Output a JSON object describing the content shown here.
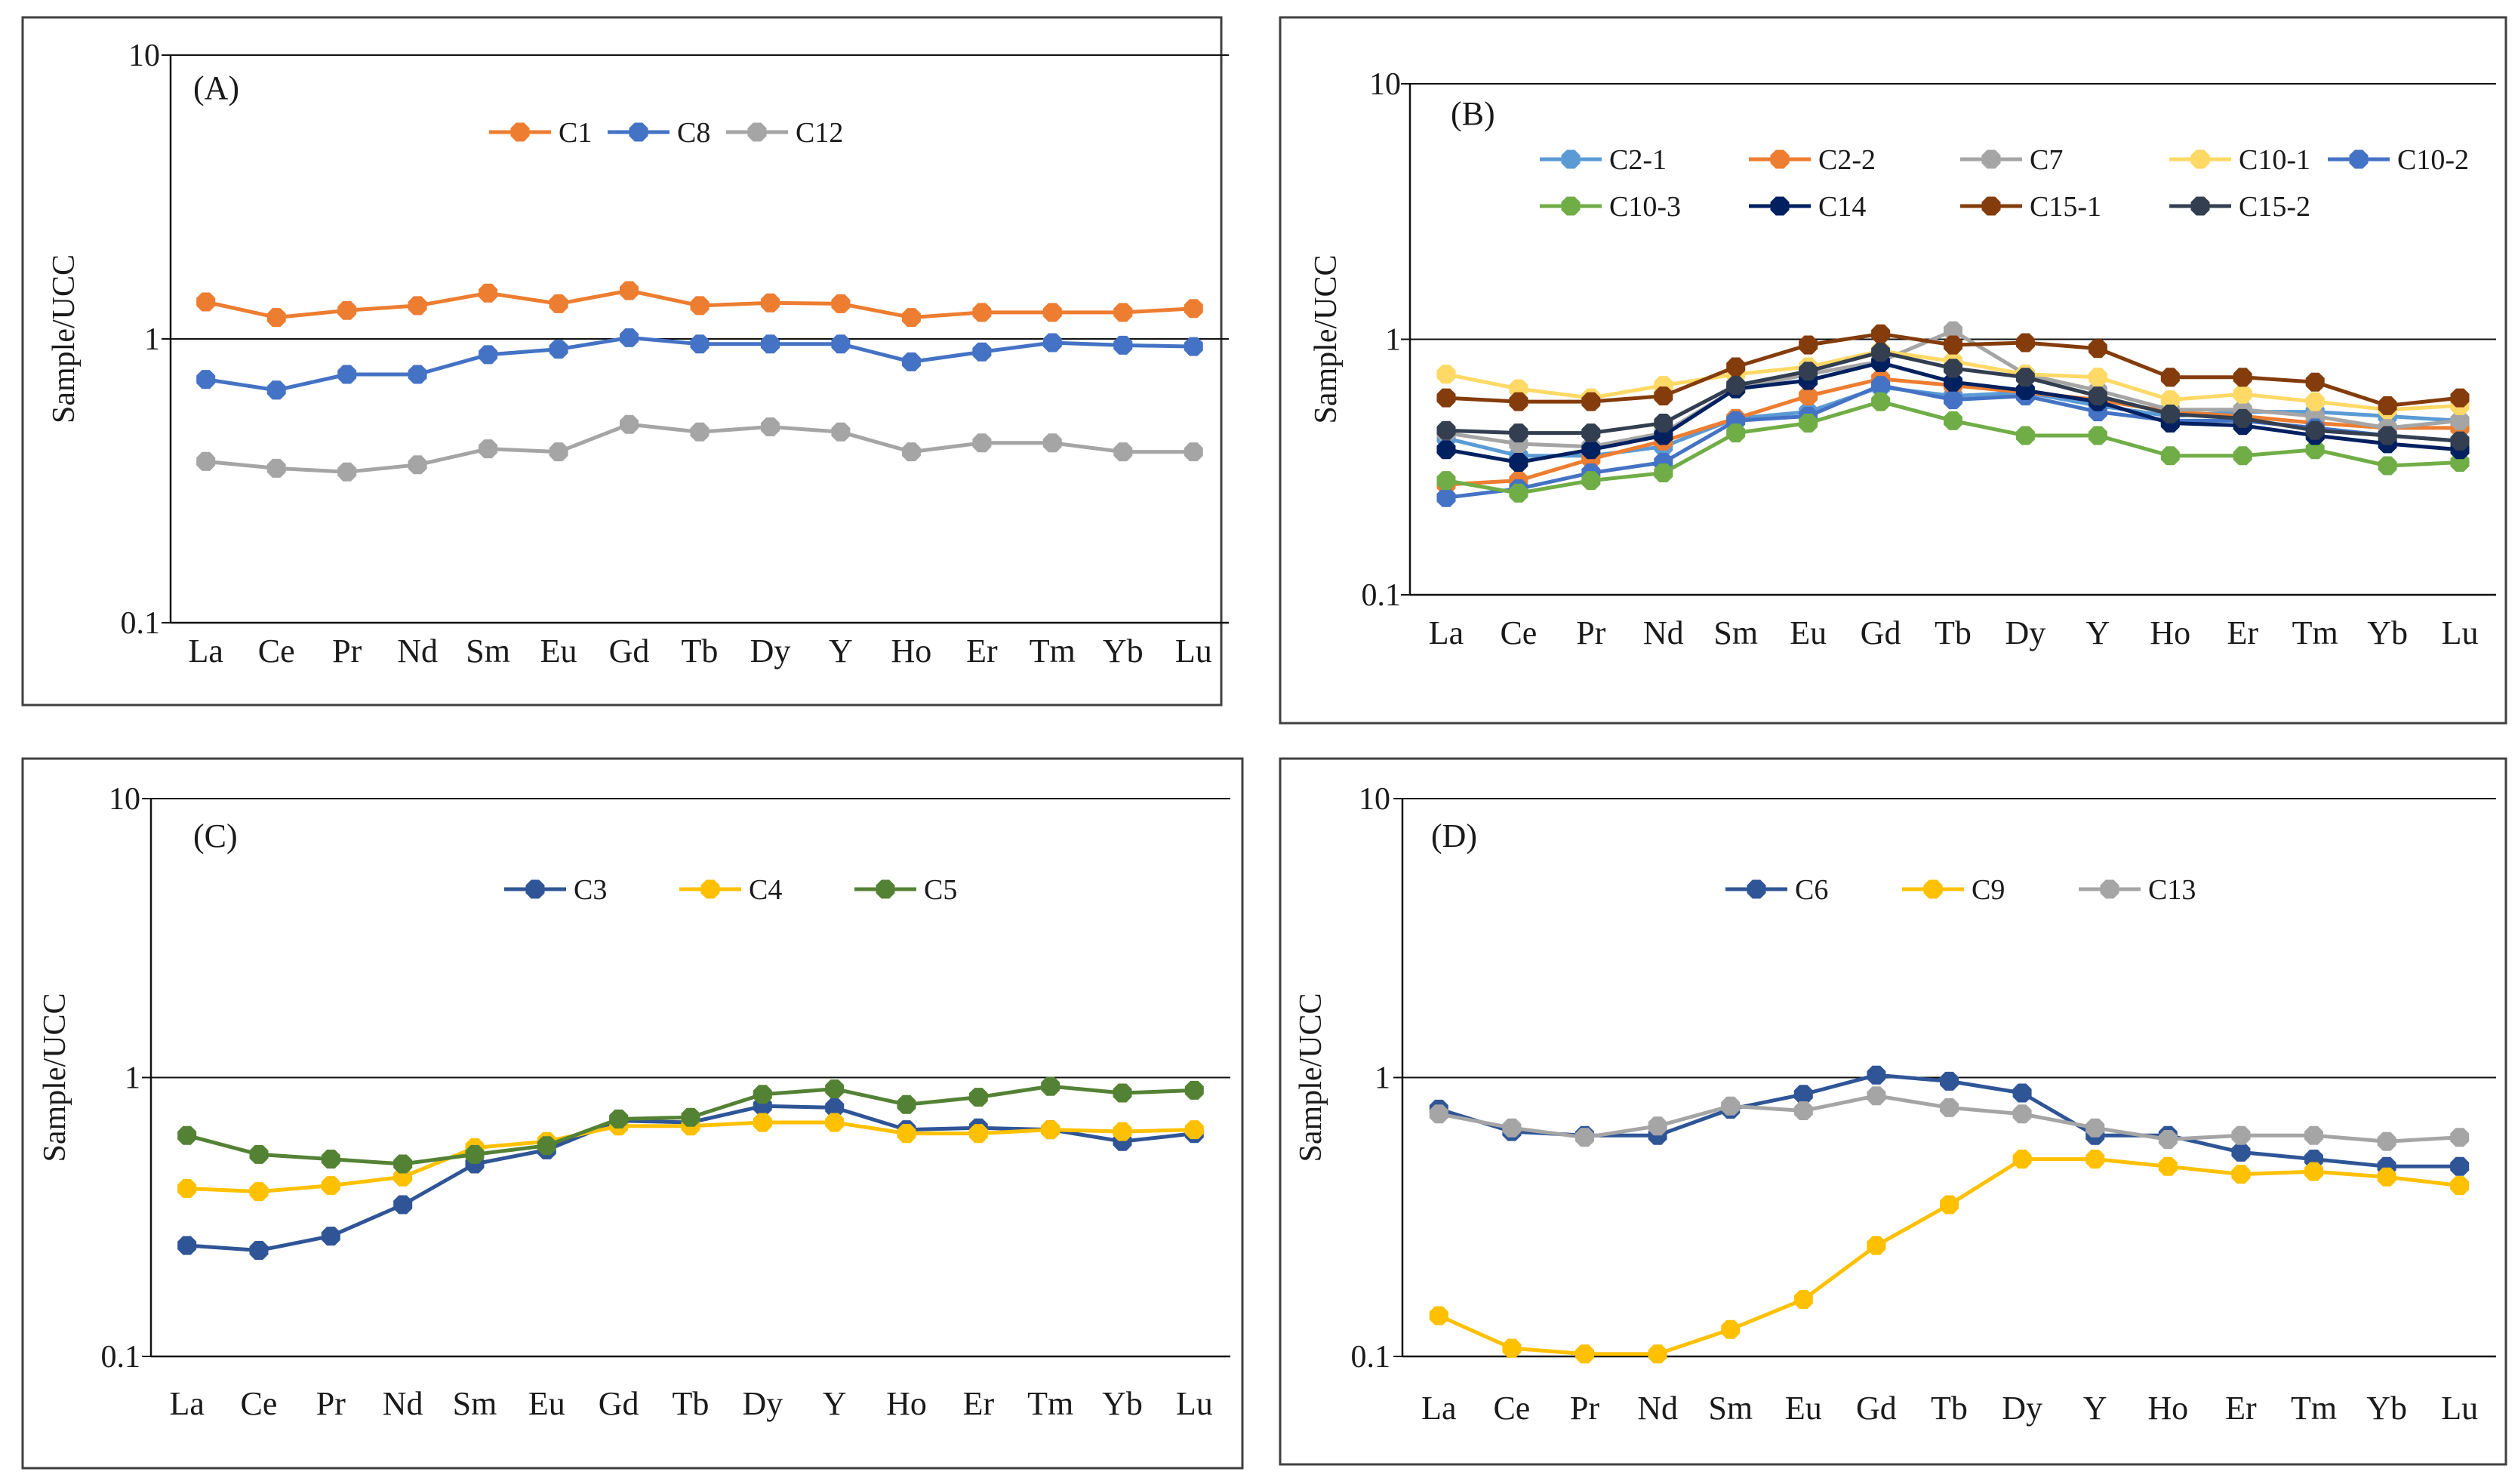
{
  "chart_data": [
    {
      "type": "line",
      "panel_label": "(A)",
      "title": "",
      "xlabel": "",
      "ylabel": "Sample/UCC",
      "yscale": "log",
      "ylim": [
        0.1,
        10
      ],
      "yticks": [
        "0.1",
        "1",
        "10"
      ],
      "grid": "horizontal at 1 and 10",
      "legend_position": "top-center",
      "categories": [
        "La",
        "Ce",
        "Pr",
        "Nd",
        "Sm",
        "Eu",
        "Gd",
        "Tb",
        "Dy",
        "Y",
        "Ho",
        "Er",
        "Tm",
        "Yb",
        "Lu"
      ],
      "series": [
        {
          "name": "C1",
          "color": "#ED7D31",
          "values": [
            1.35,
            1.19,
            1.26,
            1.31,
            1.45,
            1.33,
            1.48,
            1.31,
            1.34,
            1.33,
            1.19,
            1.24,
            1.24,
            1.24,
            1.28
          ]
        },
        {
          "name": "C8",
          "color": "#4472C4",
          "values": [
            0.72,
            0.66,
            0.75,
            0.75,
            0.88,
            0.92,
            1.01,
            0.96,
            0.96,
            0.96,
            0.83,
            0.9,
            0.97,
            0.95,
            0.94
          ]
        },
        {
          "name": "C12",
          "color": "#A5A5A5",
          "values": [
            0.37,
            0.35,
            0.34,
            0.36,
            0.41,
            0.4,
            0.5,
            0.47,
            0.49,
            0.47,
            0.4,
            0.43,
            0.43,
            0.4,
            0.4
          ]
        }
      ]
    },
    {
      "type": "line",
      "panel_label": "(B)",
      "title": "",
      "xlabel": "",
      "ylabel": "Sample/UCC",
      "yscale": "log",
      "ylim": [
        0.1,
        10
      ],
      "yticks": [
        "0.1",
        "1",
        "10"
      ],
      "grid": "horizontal at 1 and 10",
      "legend_position": "top-center",
      "categories": [
        "La",
        "Ce",
        "Pr",
        "Nd",
        "Sm",
        "Eu",
        "Gd",
        "Tb",
        "Dy",
        "Y",
        "Ho",
        "Er",
        "Tm",
        "Yb",
        "Lu"
      ],
      "series": [
        {
          "name": "C2-1",
          "color": "#5B9BD5",
          "values": [
            0.41,
            0.35,
            0.35,
            0.38,
            0.49,
            0.52,
            0.65,
            0.6,
            0.62,
            0.55,
            0.5,
            0.52,
            0.52,
            0.5,
            0.48
          ]
        },
        {
          "name": "C2-2",
          "color": "#ED7D31",
          "values": [
            0.27,
            0.28,
            0.34,
            0.4,
            0.49,
            0.6,
            0.7,
            0.66,
            0.62,
            0.58,
            0.52,
            0.5,
            0.47,
            0.45,
            0.45
          ]
        },
        {
          "name": "C7",
          "color": "#A5A5A5",
          "values": [
            0.43,
            0.39,
            0.38,
            0.43,
            0.64,
            0.73,
            0.82,
            1.08,
            0.73,
            0.63,
            0.53,
            0.53,
            0.5,
            0.45,
            0.48
          ]
        },
        {
          "name": "C10-1",
          "color": "#FFD966",
          "values": [
            0.73,
            0.64,
            0.59,
            0.66,
            0.73,
            0.78,
            0.9,
            0.82,
            0.73,
            0.71,
            0.58,
            0.61,
            0.57,
            0.53,
            0.55
          ]
        },
        {
          "name": "C10-2",
          "color": "#4472C4",
          "values": [
            0.24,
            0.26,
            0.3,
            0.33,
            0.48,
            0.5,
            0.66,
            0.58,
            0.6,
            0.52,
            0.48,
            0.48,
            0.45,
            0.42,
            0.4
          ]
        },
        {
          "name": "C10-3",
          "color": "#70AD47",
          "values": [
            0.28,
            0.25,
            0.28,
            0.3,
            0.43,
            0.47,
            0.57,
            0.48,
            0.42,
            0.42,
            0.35,
            0.35,
            0.37,
            0.32,
            0.33
          ]
        },
        {
          "name": "C14",
          "color": "#002060",
          "values": [
            0.37,
            0.33,
            0.37,
            0.42,
            0.64,
            0.69,
            0.81,
            0.68,
            0.63,
            0.57,
            0.47,
            0.46,
            0.42,
            0.39,
            0.37
          ]
        },
        {
          "name": "C15-1",
          "color": "#843C0C",
          "values": [
            0.59,
            0.57,
            0.57,
            0.6,
            0.78,
            0.95,
            1.05,
            0.95,
            0.97,
            0.92,
            0.71,
            0.71,
            0.68,
            0.55,
            0.59
          ]
        },
        {
          "name": "C15-2",
          "color": "#333F50",
          "values": [
            0.44,
            0.43,
            0.43,
            0.47,
            0.66,
            0.75,
            0.89,
            0.77,
            0.71,
            0.6,
            0.51,
            0.49,
            0.44,
            0.42,
            0.4
          ]
        }
      ]
    },
    {
      "type": "line",
      "panel_label": "(C)",
      "title": "",
      "xlabel": "",
      "ylabel": "Sample/UCC",
      "yscale": "log",
      "ylim": [
        0.1,
        10
      ],
      "yticks": [
        "0.1",
        "1",
        "10"
      ],
      "grid": "horizontal at 1 and 10",
      "legend_position": "top-center",
      "categories": [
        "La",
        "Ce",
        "Pr",
        "Nd",
        "Sm",
        "Eu",
        "Gd",
        "Tb",
        "Dy",
        "Y",
        "Ho",
        "Er",
        "Tm",
        "Yb",
        "Lu"
      ],
      "series": [
        {
          "name": "C3",
          "color": "#2F5597",
          "values": [
            0.25,
            0.24,
            0.27,
            0.35,
            0.49,
            0.55,
            0.7,
            0.69,
            0.79,
            0.78,
            0.65,
            0.66,
            0.65,
            0.59,
            0.63
          ]
        },
        {
          "name": "C4",
          "color": "#FFC000",
          "values": [
            0.4,
            0.39,
            0.41,
            0.44,
            0.56,
            0.59,
            0.67,
            0.67,
            0.69,
            0.69,
            0.63,
            0.63,
            0.65,
            0.64,
            0.65
          ]
        },
        {
          "name": "C5",
          "color": "#548235",
          "values": [
            0.62,
            0.53,
            0.51,
            0.49,
            0.53,
            0.57,
            0.71,
            0.72,
            0.87,
            0.91,
            0.8,
            0.85,
            0.93,
            0.88,
            0.9
          ]
        }
      ]
    },
    {
      "type": "line",
      "panel_label": "(D)",
      "title": "",
      "xlabel": "",
      "ylabel": "Sample/UCC",
      "yscale": "log",
      "ylim": [
        0.1,
        10
      ],
      "yticks": [
        "0.1",
        "1",
        "10"
      ],
      "grid": "horizontal at 1 and 10",
      "legend_position": "top-center",
      "categories": [
        "La",
        "Ce",
        "Pr",
        "Nd",
        "Sm",
        "Eu",
        "Gd",
        "Tb",
        "Dy",
        "Y",
        "Ho",
        "Er",
        "Tm",
        "Yb",
        "Lu"
      ],
      "series": [
        {
          "name": "C6",
          "color": "#2F5597",
          "values": [
            0.77,
            0.64,
            0.62,
            0.62,
            0.77,
            0.87,
            1.02,
            0.97,
            0.88,
            0.62,
            0.62,
            0.54,
            0.51,
            0.48,
            0.48
          ]
        },
        {
          "name": "C9",
          "color": "#FFC000",
          "values": [
            0.14,
            0.107,
            0.102,
            0.102,
            0.125,
            0.16,
            0.25,
            0.35,
            0.51,
            0.51,
            0.48,
            0.45,
            0.46,
            0.44,
            0.41
          ]
        },
        {
          "name": "C13",
          "color": "#A5A5A5",
          "values": [
            0.74,
            0.66,
            0.61,
            0.67,
            0.79,
            0.76,
            0.86,
            0.78,
            0.74,
            0.66,
            0.6,
            0.62,
            0.62,
            0.59,
            0.61
          ]
        }
      ]
    }
  ]
}
